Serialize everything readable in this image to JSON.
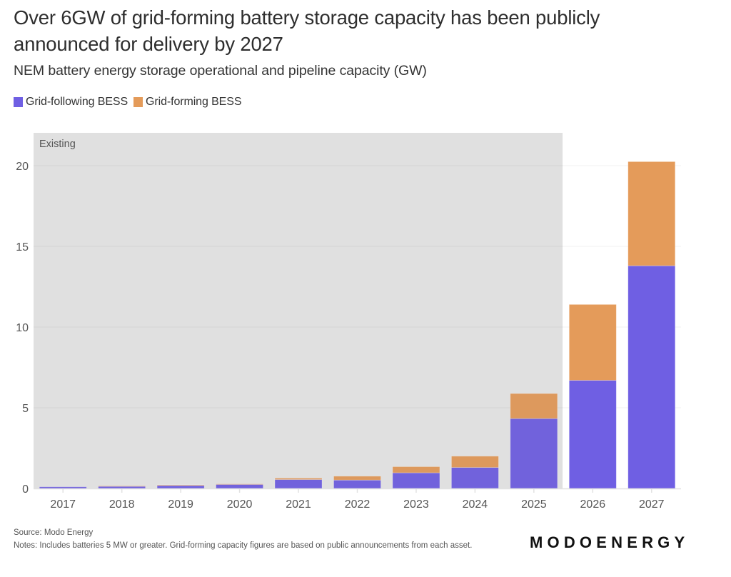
{
  "header": {
    "title": "Over 6GW of grid-forming battery storage capacity has been publicly announced for delivery by 2027",
    "subtitle": "NEM battery energy storage operational and pipeline capacity (GW)"
  },
  "legend": [
    {
      "label": "Grid-following BESS",
      "color": "#6F5FE3"
    },
    {
      "label": "Grid-forming BESS",
      "color": "#E49B5A"
    }
  ],
  "chart_data": {
    "type": "bar",
    "stacked": true,
    "title": "Over 6GW of grid-forming battery storage capacity has been publicly announced for delivery by 2027",
    "subtitle": "NEM battery energy storage operational and pipeline capacity (GW)",
    "xlabel": "",
    "ylabel": "",
    "categories": [
      "2017",
      "2018",
      "2019",
      "2020",
      "2021",
      "2022",
      "2023",
      "2024",
      "2025",
      "2026",
      "2027"
    ],
    "series": [
      {
        "name": "Grid-following BESS",
        "color": "#6F5FE3",
        "values": [
          0.1,
          0.13,
          0.18,
          0.25,
          0.55,
          0.52,
          0.97,
          1.3,
          4.33,
          6.7,
          13.8
        ]
      },
      {
        "name": "Grid-forming BESS",
        "color": "#E49B5A",
        "values": [
          0.0,
          0.03,
          0.04,
          0.03,
          0.09,
          0.24,
          0.38,
          0.7,
          1.55,
          4.7,
          6.45
        ]
      }
    ],
    "ylim": [
      0,
      21.5
    ],
    "yticks": [
      0,
      5,
      10,
      15,
      20
    ],
    "grid": true,
    "legend_position": "top-left",
    "annotations": [
      {
        "type": "shaded-region",
        "label": "Existing",
        "from_category": "2017",
        "to_category": "2025",
        "color": "#E8E8E8"
      }
    ]
  },
  "footer": {
    "source": "Source: Modo Energy",
    "notes": "Notes: Includes batteries 5 MW or greater. Grid-forming capacity figures are based on public announcements from each asset.",
    "brand": "MODOENERGY"
  }
}
